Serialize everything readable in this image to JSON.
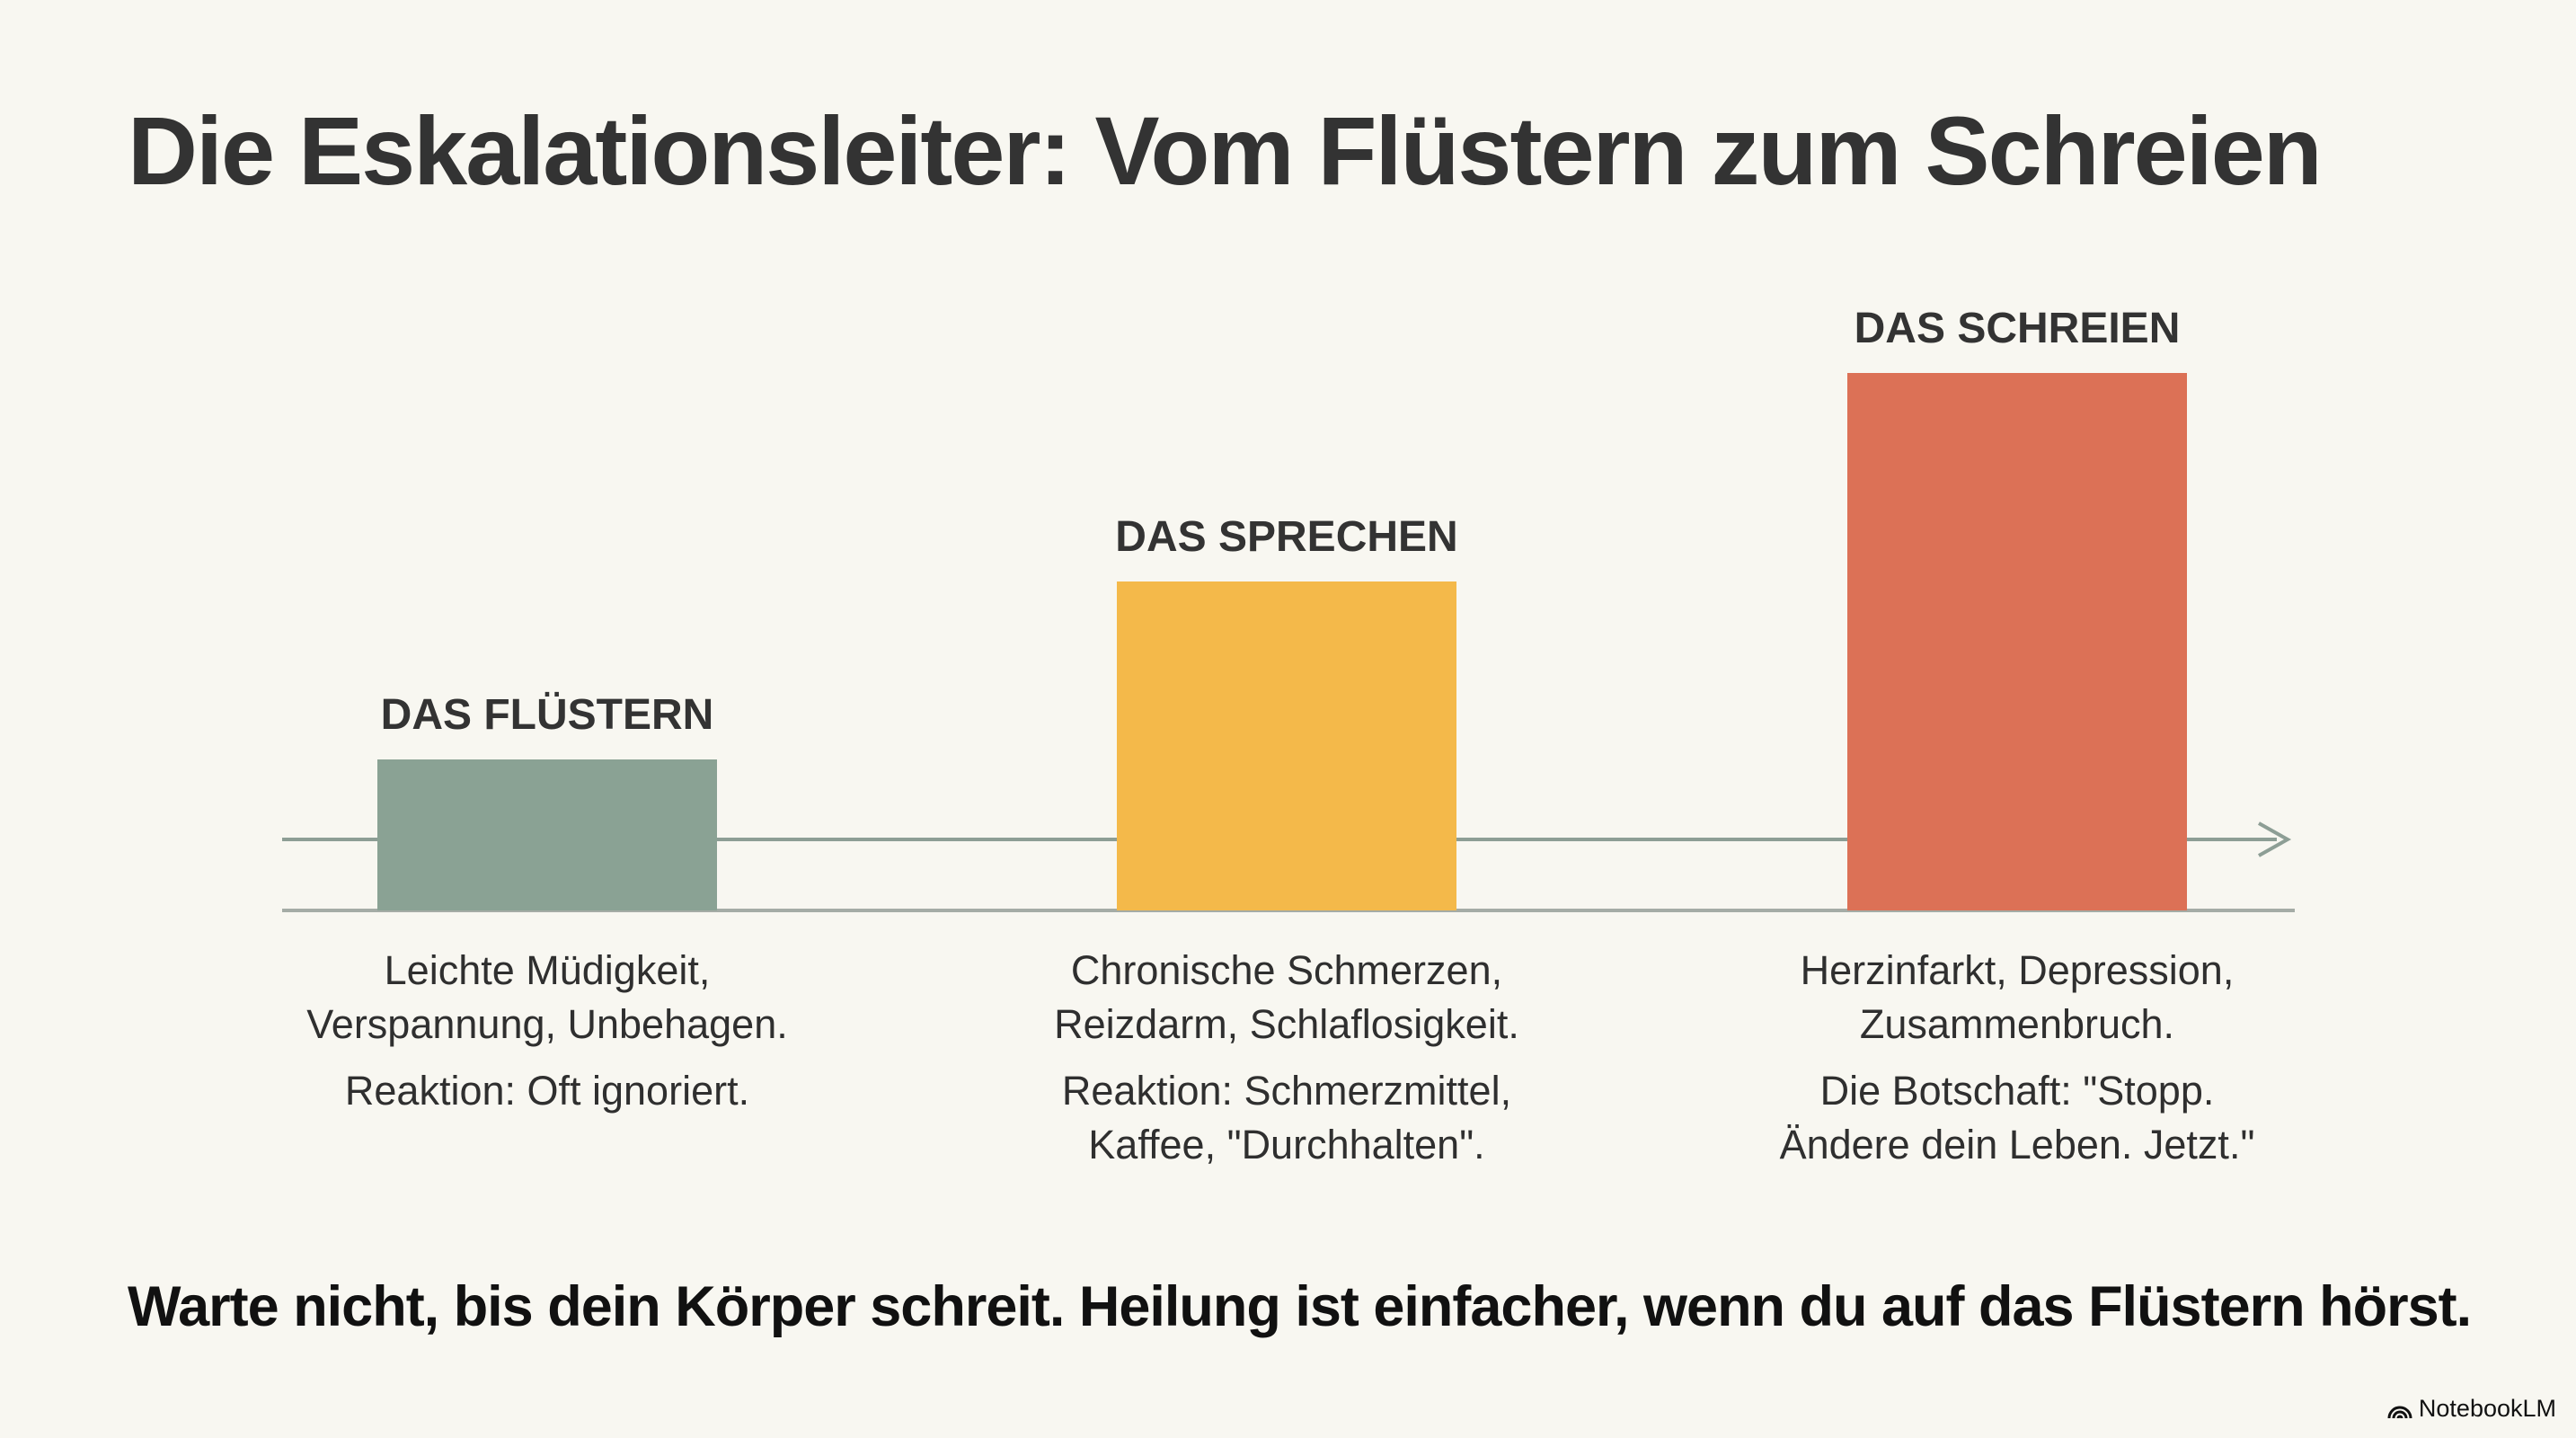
{
  "title": "Die Eskalationsleiter: Vom Flüstern zum Schreien",
  "colors": {
    "whisper": "#8aa294",
    "speak": "#f4b94a",
    "scream": "#dc7156",
    "axis": "#8d9e95",
    "background": "#f8f7f1"
  },
  "stages": [
    {
      "label": "DAS FLÜSTERN",
      "level": 1,
      "symptoms": [
        "Leichte Müdigkeit,",
        "Verspannung, Unbehagen."
      ],
      "reaction": [
        "Reaktion: Oft ignoriert."
      ]
    },
    {
      "label": "DAS SPRECHEN",
      "level": 2.2,
      "symptoms": [
        "Chronische Schmerzen,",
        "Reizdarm, Schlaflosigkeit."
      ],
      "reaction": [
        "Reaktion: Schmerzmittel,",
        "Kaffee, \"Durchhalten\"."
      ]
    },
    {
      "label": "DAS SCHREIEN",
      "level": 3.6,
      "symptoms": [
        "Herzinfarkt, Depression,",
        "Zusammenbruch."
      ],
      "reaction": [
        "Die Botschaft: \"Stopp.",
        "Ändere dein Leben. Jetzt.\""
      ]
    }
  ],
  "bottom_message": "Warte nicht, bis dein Körper schreit. Heilung ist einfacher, wenn du auf das Flüstern hörst.",
  "brand": {
    "name": "NotebookLM",
    "icon": "notebooklm-logo-icon"
  }
}
